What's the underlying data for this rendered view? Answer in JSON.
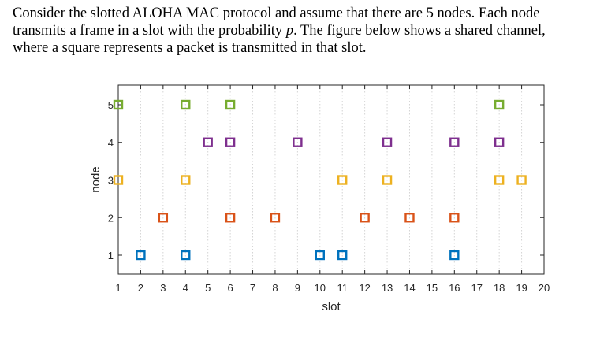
{
  "question": {
    "line1": "Consider the slotted ALOHA MAC protocol and assume that there are 5 nodes. Each node",
    "line2_pre": "transmits a frame in a slot with the probability ",
    "line2_p": "p",
    "line2_post": ". The figure below shows a shared channel,",
    "line3": "where a square represents a packet is transmitted in that slot."
  },
  "chart_data": {
    "type": "scatter",
    "title": "",
    "xlabel": "slot",
    "ylabel": "node",
    "xlim": [
      1,
      20
    ],
    "ylim": [
      1,
      5
    ],
    "xticks": [
      1,
      2,
      3,
      4,
      5,
      6,
      7,
      8,
      9,
      10,
      11,
      12,
      13,
      14,
      15,
      16,
      17,
      18,
      19,
      20
    ],
    "yticks": [
      1,
      2,
      3,
      4,
      5
    ],
    "grid": "vertical dotted",
    "marker": "square (open)",
    "series": [
      {
        "node": 1,
        "color": "#0072BD",
        "x": [
          2,
          4,
          10,
          11,
          16
        ]
      },
      {
        "node": 2,
        "color": "#D95319",
        "x": [
          3,
          6,
          8,
          12,
          14,
          16
        ]
      },
      {
        "node": 3,
        "color": "#EDB120",
        "x": [
          1,
          4,
          11,
          13,
          18,
          19
        ]
      },
      {
        "node": 4,
        "color": "#7E2F8E",
        "x": [
          5,
          6,
          9,
          13,
          16,
          18
        ]
      },
      {
        "node": 5,
        "color": "#77AC30",
        "x": [
          1,
          4,
          6,
          18
        ]
      }
    ]
  }
}
